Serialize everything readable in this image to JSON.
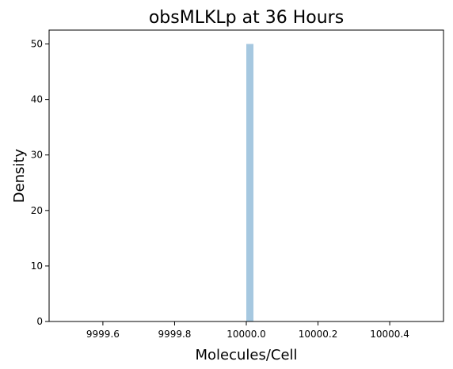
{
  "chart_data": {
    "type": "bar",
    "title": "obsMLKLp at 36 Hours",
    "xlabel": "Molecules/Cell",
    "ylabel": "Density",
    "xlim": [
      9999.45,
      10000.55
    ],
    "ylim": [
      0,
      52.5
    ],
    "x_ticks": [
      9999.6,
      9999.8,
      10000.0,
      10000.2,
      10000.4
    ],
    "x_tick_labels": [
      "9999.6",
      "9999.8",
      "10000.0",
      "10000.2",
      "10000.4"
    ],
    "y_ticks": [
      0,
      10,
      20,
      30,
      40,
      50
    ],
    "y_tick_labels": [
      "0",
      "10",
      "20",
      "30",
      "40",
      "50"
    ],
    "bars": [
      {
        "x_start": 10000.0,
        "x_end": 10000.02,
        "value": 50
      }
    ],
    "bar_color": "#a6c8e0",
    "grid": false,
    "legend": "none"
  }
}
